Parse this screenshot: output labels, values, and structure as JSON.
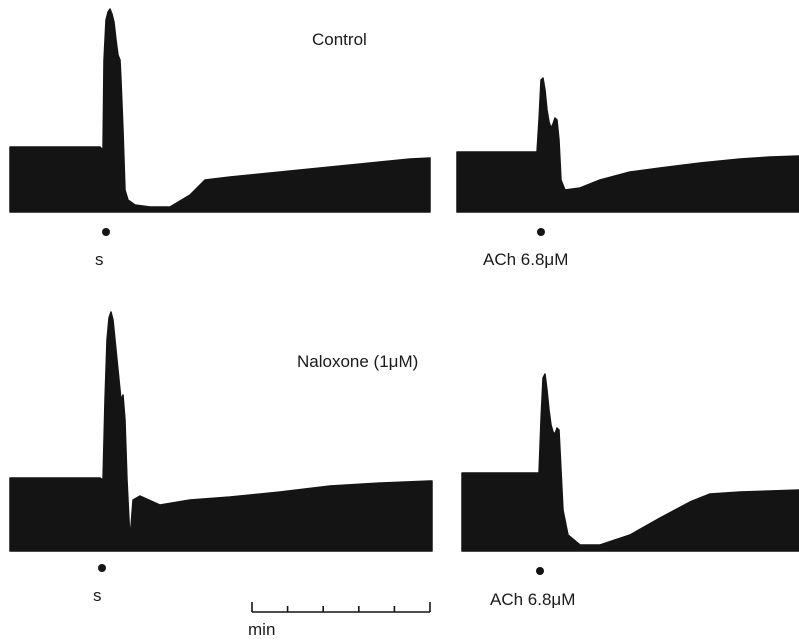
{
  "panels": {
    "control": {
      "title": "Control",
      "stimulus_label": "s",
      "drug_label": "ACh 6.8μM"
    },
    "naloxone": {
      "title": "Naloxone (1μM)",
      "stimulus_label": "s",
      "drug_label": "ACh 6.8μM"
    }
  },
  "scale_bar": {
    "label": "min",
    "divisions": 5
  }
}
